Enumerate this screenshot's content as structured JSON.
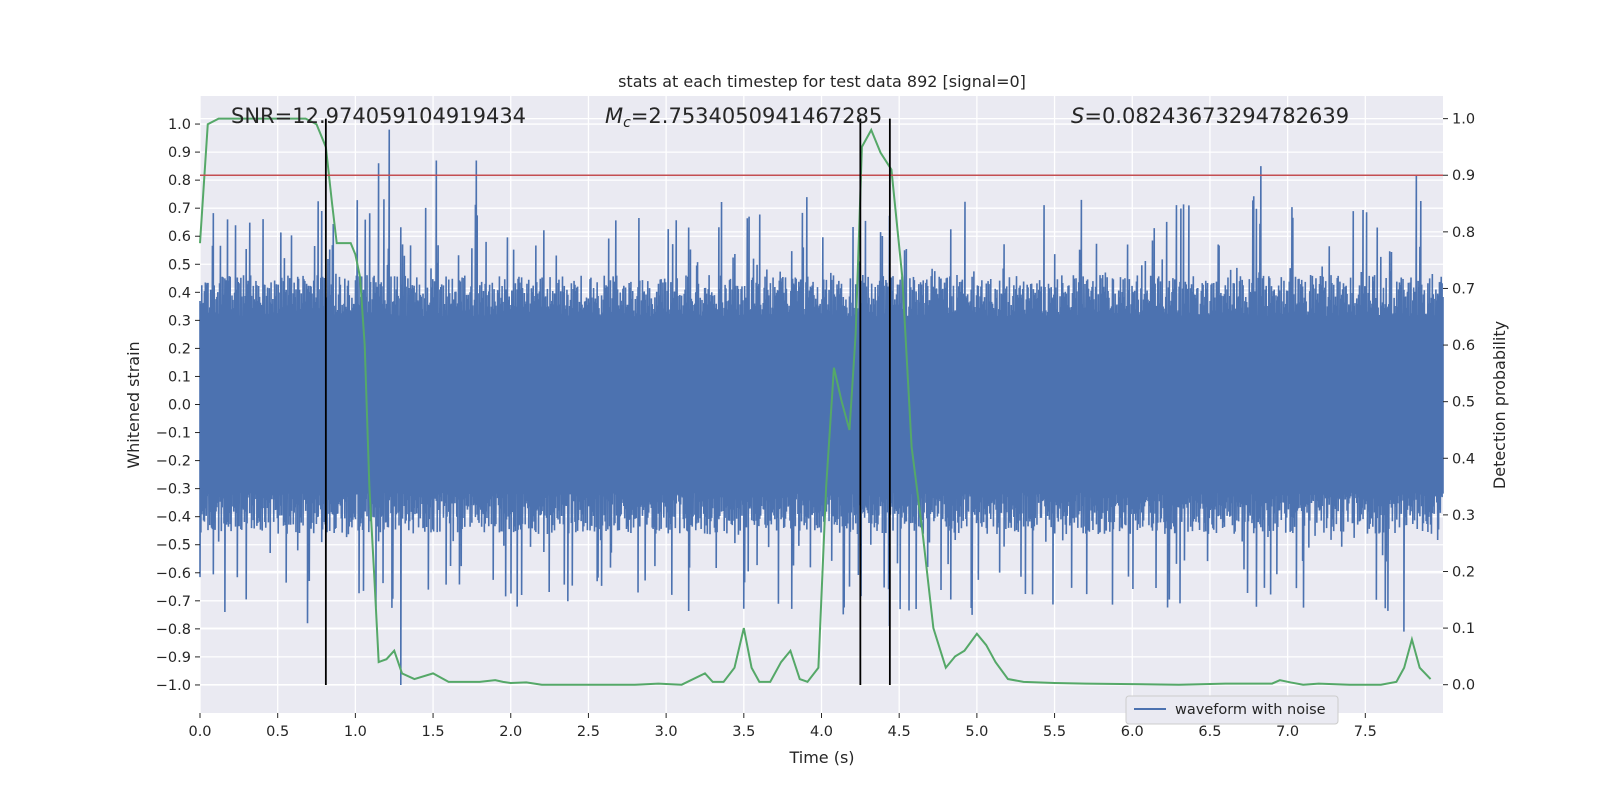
{
  "chart_data": {
    "type": "line",
    "title": "stats at each timestep for test data 892 [signal=0]",
    "xlabel": "Time (s)",
    "ylabel": "Whitened strain",
    "y2label": "Detection probability",
    "xlim": [
      0,
      8
    ],
    "ylim": [
      -1.1,
      1.1
    ],
    "y2lim": [
      -0.05,
      1.04
    ],
    "x_ticks": [
      0.0,
      0.5,
      1.0,
      1.5,
      2.0,
      2.5,
      3.0,
      3.5,
      4.0,
      4.5,
      5.0,
      5.5,
      6.0,
      6.5,
      7.0,
      7.5
    ],
    "x_tick_labels": [
      "0.0",
      "0.5",
      "1.0",
      "1.5",
      "2.0",
      "2.5",
      "3.0",
      "3.5",
      "4.0",
      "4.5",
      "5.0",
      "5.5",
      "6.0",
      "6.5",
      "7.0",
      "7.5"
    ],
    "y_ticks": [
      1.0,
      0.9,
      0.8,
      0.7,
      0.6,
      0.5,
      0.4,
      0.3,
      0.2,
      0.1,
      0.0,
      -0.1,
      -0.2,
      -0.3,
      -0.4,
      -0.5,
      -0.6,
      -0.7,
      -0.8,
      -0.9,
      -1.0
    ],
    "y_tick_labels": [
      "1.0",
      "0.9",
      "0.8",
      "0.7",
      "0.6",
      "0.5",
      "0.4",
      "0.3",
      "0.2",
      "0.1",
      "0.0",
      "−0.1",
      "−0.2",
      "−0.3",
      "−0.4",
      "−0.5",
      "−0.6",
      "−0.7",
      "−0.8",
      "−0.9",
      "−1.0"
    ],
    "y2_ticks": [
      1.0,
      0.9,
      0.8,
      0.7,
      0.6,
      0.5,
      0.4,
      0.3,
      0.2,
      0.1,
      0.0
    ],
    "y2_tick_labels": [
      "1.0",
      "0.9",
      "0.8",
      "0.7",
      "0.6",
      "0.5",
      "0.4",
      "0.3",
      "0.2",
      "0.1",
      "0.0"
    ],
    "grid": true,
    "legend": {
      "entries": [
        "waveform with noise"
      ],
      "placement": "lower-right"
    },
    "annotations": {
      "snr_text": "SNR=12.974059104919434",
      "mc_symbol": "M",
      "mc_subscript": "c",
      "mc_value": "=2.7534050941467285",
      "s_symbol": "S",
      "s_value": "=0.08243673294782639"
    },
    "threshold_line": {
      "y2": 0.9,
      "color": "#c44e52"
    },
    "vertical_lines": [
      0.81,
      4.25,
      4.44
    ],
    "colors": {
      "waveform": "#4c72b0",
      "probability": "#55a868",
      "threshold": "#c44e52",
      "vlines": "#000000",
      "plot_bg": "#eaeaf2",
      "grid": "#ffffff"
    },
    "series": [
      {
        "name": "waveform with noise",
        "type": "noise-envelope",
        "envelope": {
          "upper_typical": 0.42,
          "lower_typical": -0.42,
          "upper_max": 0.98,
          "lower_min": -1.0
        },
        "notable_spikes": [
          {
            "x": 0.16,
            "y": -0.74
          },
          {
            "x": 0.69,
            "y": -0.78
          },
          {
            "x": 1.15,
            "y": 0.86
          },
          {
            "x": 1.22,
            "y": 0.98
          },
          {
            "x": 1.29,
            "y": -1.0
          },
          {
            "x": 1.52,
            "y": 0.87
          },
          {
            "x": 1.78,
            "y": 0.87
          },
          {
            "x": 4.44,
            "y": -0.79
          },
          {
            "x": 6.83,
            "y": 0.85
          },
          {
            "x": 7.83,
            "y": 0.82
          },
          {
            "x": 7.75,
            "y": -0.81
          }
        ]
      },
      {
        "name": "",
        "axis": "y2",
        "x": [
          0.0,
          0.05,
          0.12,
          0.2,
          0.3,
          0.4,
          0.5,
          0.6,
          0.68,
          0.75,
          0.81,
          0.85,
          0.88,
          0.92,
          0.97,
          1.0,
          1.03,
          1.06,
          1.09,
          1.12,
          1.15,
          1.2,
          1.25,
          1.3,
          1.38,
          1.5,
          1.6,
          1.7,
          1.8,
          1.9,
          1.95,
          2.0,
          2.1,
          2.2,
          2.3,
          2.5,
          2.8,
          2.95,
          3.1,
          3.25,
          3.3,
          3.37,
          3.44,
          3.5,
          3.55,
          3.6,
          3.67,
          3.74,
          3.8,
          3.86,
          3.91,
          3.98,
          4.03,
          4.08,
          4.13,
          4.18,
          4.22,
          4.26,
          4.32,
          4.38,
          4.45,
          4.52,
          4.58,
          4.65,
          4.72,
          4.8,
          4.86,
          4.92,
          5.0,
          5.06,
          5.12,
          5.2,
          5.3,
          5.5,
          5.7,
          6.0,
          6.3,
          6.6,
          6.9,
          6.95,
          7.02,
          7.1,
          7.2,
          7.4,
          7.6,
          7.7,
          7.75,
          7.8,
          7.85,
          7.92
        ],
        "y": [
          0.78,
          0.99,
          1.0,
          1.0,
          1.0,
          1.0,
          1.0,
          1.0,
          1.0,
          0.99,
          0.95,
          0.85,
          0.78,
          0.78,
          0.78,
          0.76,
          0.72,
          0.6,
          0.35,
          0.2,
          0.04,
          0.045,
          0.06,
          0.02,
          0.01,
          0.02,
          0.005,
          0.005,
          0.005,
          0.008,
          0.005,
          0.003,
          0.004,
          0.0,
          0.0,
          0.0,
          0.0,
          0.002,
          0.0,
          0.02,
          0.005,
          0.005,
          0.03,
          0.1,
          0.03,
          0.005,
          0.005,
          0.04,
          0.06,
          0.01,
          0.005,
          0.03,
          0.35,
          0.56,
          0.5,
          0.45,
          0.62,
          0.95,
          0.98,
          0.94,
          0.91,
          0.72,
          0.42,
          0.27,
          0.1,
          0.03,
          0.05,
          0.06,
          0.09,
          0.07,
          0.04,
          0.01,
          0.005,
          0.003,
          0.002,
          0.001,
          0.0,
          0.002,
          0.002,
          0.008,
          0.004,
          0.0,
          0.002,
          0.0,
          0.0,
          0.005,
          0.03,
          0.08,
          0.03,
          0.01
        ]
      }
    ]
  }
}
